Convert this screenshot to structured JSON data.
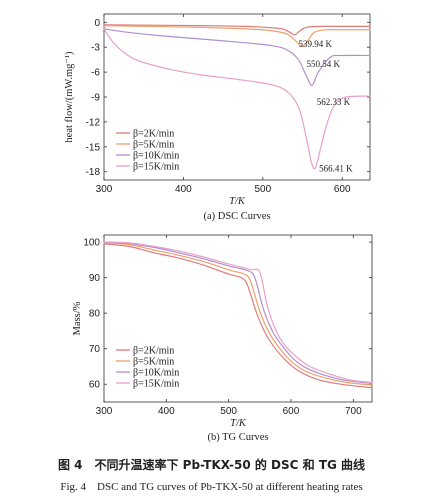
{
  "chart_data": [
    {
      "type": "line",
      "subtitle": "(a) DSC Curves",
      "xlabel": "T/K",
      "ylabel": "heat flow/(mW.mg⁻¹)",
      "xlim": [
        300,
        635
      ],
      "ylim": [
        -19,
        1
      ],
      "xticks": [
        300,
        400,
        500,
        600
      ],
      "yticks": [
        0,
        -3,
        -6,
        -9,
        -12,
        -15,
        -18
      ],
      "legend": "bottom-left",
      "series": [
        {
          "name": "β=2K/min",
          "color": "#e07b7b",
          "x": [
            300,
            360,
            420,
            480,
            510,
            525,
            534,
            540,
            546,
            555,
            575,
            600,
            635
          ],
          "y": [
            -0.3,
            -0.35,
            -0.4,
            -0.5,
            -0.65,
            -0.8,
            -1.2,
            -1.5,
            -1.1,
            -0.6,
            -0.5,
            -0.5,
            -0.5
          ]
        },
        {
          "name": "β=5K/min",
          "color": "#f0a06a",
          "x": [
            300,
            360,
            420,
            480,
            510,
            530,
            542,
            550,
            556,
            565,
            580,
            600,
            635
          ],
          "y": [
            -0.4,
            -0.5,
            -0.6,
            -0.8,
            -1.0,
            -1.4,
            -2.3,
            -2.9,
            -2.3,
            -1.2,
            -0.9,
            -0.9,
            -0.9
          ]
        },
        {
          "name": "β=10K/min",
          "color": "#b08fd0",
          "x": [
            300,
            330,
            370,
            420,
            470,
            510,
            530,
            545,
            555,
            562,
            570,
            585,
            600,
            635
          ],
          "y": [
            -0.8,
            -1.2,
            -1.6,
            -2.0,
            -2.4,
            -2.8,
            -3.3,
            -4.5,
            -6.5,
            -7.6,
            -6.0,
            -4.2,
            -4.0,
            -4.0
          ]
        },
        {
          "name": "β=15K/min",
          "color": "#e8a0c8",
          "x": [
            300,
            315,
            340,
            380,
            420,
            470,
            510,
            530,
            545,
            555,
            561,
            566,
            572,
            580,
            590,
            605,
            635
          ],
          "y": [
            -0.8,
            -2.8,
            -4.5,
            -5.6,
            -6.3,
            -6.9,
            -7.5,
            -8.3,
            -10.2,
            -14.0,
            -16.8,
            -17.6,
            -15.5,
            -12.5,
            -10.0,
            -9.0,
            -8.9
          ]
        }
      ],
      "annotations": [
        {
          "text": "539.94 K",
          "x": 545,
          "y": -2.6
        },
        {
          "text": "550.54 K",
          "x": 555,
          "y": -5.0
        },
        {
          "text": "562.33 K",
          "x": 568,
          "y": -9.6
        },
        {
          "text": "566.41 K",
          "x": 571,
          "y": -17.6
        }
      ]
    },
    {
      "type": "line",
      "subtitle": "(b) TG Curves",
      "xlabel": "T/K",
      "ylabel": "Mass/%",
      "xlim": [
        300,
        730
      ],
      "ylim": [
        55,
        102
      ],
      "xticks": [
        300,
        400,
        500,
        600,
        700
      ],
      "yticks": [
        60,
        70,
        80,
        90,
        100
      ],
      "legend": "bottom-left",
      "series": [
        {
          "name": "β=2K/min",
          "color": "#e07b7b",
          "x": [
            300,
            340,
            380,
            420,
            460,
            500,
            520,
            530,
            545,
            560,
            575,
            590,
            610,
            640,
            680,
            730
          ],
          "y": [
            99.5,
            98.8,
            97.0,
            95.5,
            93.5,
            91.0,
            90.0,
            88.0,
            80.0,
            74.0,
            70.0,
            67.0,
            64.0,
            61.5,
            60.0,
            59.0
          ]
        },
        {
          "name": "β=5K/min",
          "color": "#f0a06a",
          "x": [
            300,
            340,
            380,
            420,
            460,
            500,
            525,
            535,
            550,
            565,
            580,
            600,
            620,
            650,
            690,
            730
          ],
          "y": [
            99.8,
            99.3,
            97.8,
            96.3,
            94.5,
            92.2,
            91.0,
            89.0,
            80.5,
            74.5,
            70.5,
            66.5,
            64.0,
            62.0,
            60.5,
            59.8
          ]
        },
        {
          "name": "β=10K/min",
          "color": "#b08fd0",
          "x": [
            300,
            340,
            380,
            420,
            460,
            500,
            530,
            542,
            556,
            570,
            585,
            605,
            625,
            655,
            690,
            730
          ],
          "y": [
            100.0,
            99.6,
            98.5,
            97.0,
            95.3,
            93.3,
            92.0,
            90.0,
            81.0,
            75.0,
            71.0,
            67.0,
            64.5,
            62.5,
            61.0,
            60.3
          ]
        },
        {
          "name": "β=15K/min",
          "color": "#e8a0c8",
          "x": [
            300,
            340,
            380,
            420,
            460,
            500,
            535,
            550,
            562,
            575,
            590,
            610,
            630,
            660,
            695,
            730
          ],
          "y": [
            100.0,
            99.8,
            98.8,
            97.5,
            95.8,
            93.8,
            92.3,
            91.5,
            82.0,
            75.5,
            71.0,
            67.5,
            65.0,
            63.0,
            61.2,
            60.5
          ]
        }
      ]
    }
  ],
  "caption_cn": "图 4　不同升温速率下 Pb-TKX-50 的 DSC 和 TG 曲线",
  "caption_en": "Fig. 4　DSC and TG curves of Pb-TKX-50 at different heating rates"
}
